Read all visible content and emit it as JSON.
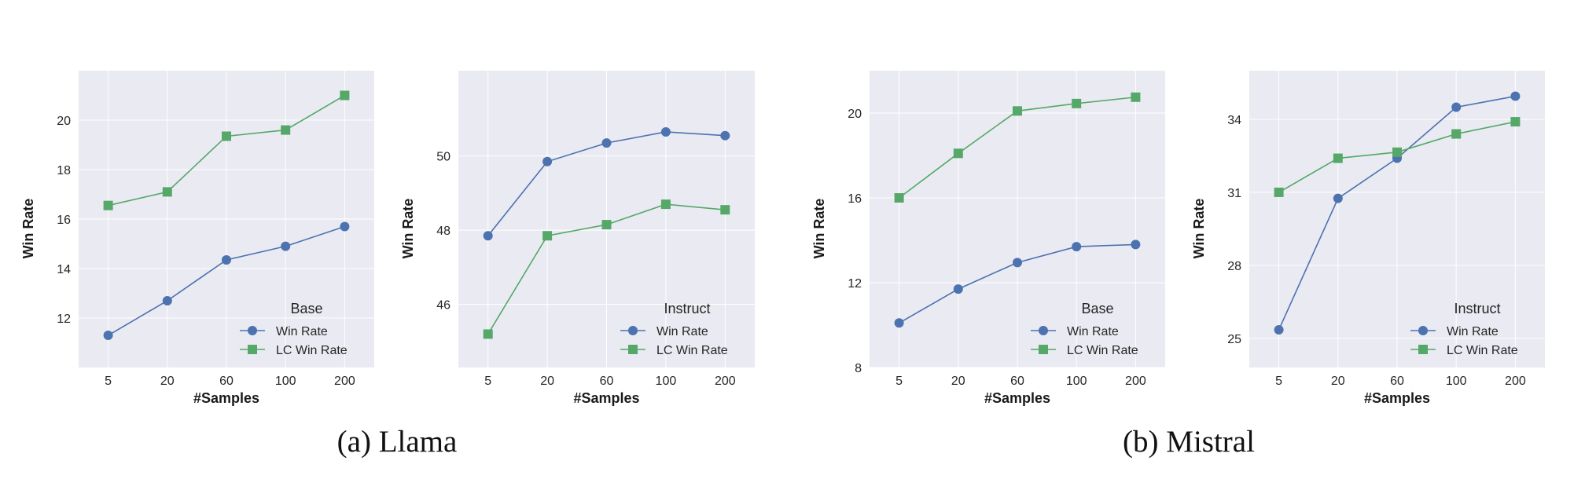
{
  "captions": {
    "llama": "(a) Llama",
    "mistral": "(b) Mistral"
  },
  "chart_data": [
    {
      "type": "line",
      "group": "Llama",
      "xlabel": "#Samples",
      "ylabel": "Win Rate",
      "categories": [
        "5",
        "20",
        "60",
        "100",
        "200"
      ],
      "ylim": [
        10.0,
        22.0
      ],
      "yticks": [
        12,
        14,
        16,
        18,
        20
      ],
      "grid": true,
      "legend_title": "Base",
      "legend_position": "lower-right",
      "series": [
        {
          "name": "Win Rate",
          "values": [
            11.3,
            12.7,
            14.35,
            14.9,
            15.7
          ],
          "color": "#4c72b0",
          "marker": "circle"
        },
        {
          "name": "LC Win Rate",
          "values": [
            16.55,
            17.1,
            19.35,
            19.6,
            21.0
          ],
          "color": "#55a868",
          "marker": "square"
        }
      ]
    },
    {
      "type": "line",
      "group": "Llama",
      "xlabel": "#Samples",
      "ylabel": "Win Rate",
      "categories": [
        "5",
        "20",
        "60",
        "100",
        "200"
      ],
      "ylim": [
        44.3,
        52.3
      ],
      "yticks": [
        46,
        48,
        50
      ],
      "grid": true,
      "legend_title": "Instruct",
      "legend_position": "lower-right",
      "series": [
        {
          "name": "Win Rate",
          "values": [
            47.85,
            49.85,
            50.35,
            50.65,
            50.55
          ],
          "color": "#4c72b0",
          "marker": "circle"
        },
        {
          "name": "LC Win Rate",
          "values": [
            45.2,
            47.85,
            48.15,
            48.7,
            48.55
          ],
          "color": "#55a868",
          "marker": "square"
        }
      ]
    },
    {
      "type": "line",
      "group": "Mistral",
      "xlabel": "#Samples",
      "ylabel": "Win Rate",
      "categories": [
        "5",
        "20",
        "60",
        "100",
        "200"
      ],
      "ylim": [
        8.0,
        22.0
      ],
      "yticks": [
        8,
        12,
        16,
        20
      ],
      "grid": true,
      "legend_title": "Base",
      "legend_position": "lower-right",
      "series": [
        {
          "name": "Win Rate",
          "values": [
            10.1,
            11.7,
            12.95,
            13.7,
            13.8
          ],
          "color": "#4c72b0",
          "marker": "circle"
        },
        {
          "name": "LC Win Rate",
          "values": [
            16.0,
            18.1,
            20.1,
            20.45,
            20.75
          ],
          "color": "#55a868",
          "marker": "square"
        }
      ]
    },
    {
      "type": "line",
      "group": "Mistral",
      "xlabel": "#Samples",
      "ylabel": "Win Rate",
      "categories": [
        "5",
        "20",
        "60",
        "100",
        "200"
      ],
      "ylim": [
        23.8,
        36.0
      ],
      "yticks": [
        25,
        28,
        31,
        34
      ],
      "grid": true,
      "legend_title": "Instruct",
      "legend_position": "lower-right",
      "series": [
        {
          "name": "Win Rate",
          "values": [
            25.35,
            30.75,
            32.4,
            34.5,
            34.95
          ],
          "color": "#4c72b0",
          "marker": "circle"
        },
        {
          "name": "LC Win Rate",
          "values": [
            31.0,
            32.4,
            32.65,
            33.4,
            33.9
          ],
          "color": "#55a868",
          "marker": "square"
        }
      ]
    }
  ]
}
